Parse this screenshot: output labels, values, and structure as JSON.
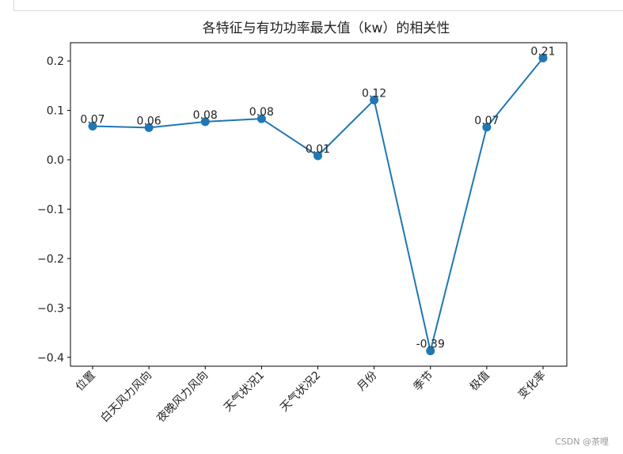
{
  "chart_data": {
    "type": "line",
    "title": "各特征与有功功率最大值（kw）的相关性",
    "categories": [
      "位置",
      "白天风力风向",
      "夜晚风力风向",
      "天气状况1",
      "天气状况2",
      "月份",
      "季节",
      "极值",
      "变化率"
    ],
    "values": [
      0.068,
      0.065,
      0.077,
      0.083,
      0.008,
      0.121,
      -0.387,
      0.066,
      0.206
    ],
    "data_labels": [
      "0.07",
      "0.06",
      "0.08",
      "0.08",
      "0.01",
      "0.12",
      "-0.39",
      "0.07",
      "0.21"
    ],
    "ylim": [
      -0.418,
      0.237
    ],
    "yticks": [
      0.2,
      0.1,
      0.0,
      -0.1,
      -0.2,
      -0.3,
      -0.4
    ],
    "ytick_labels": [
      "0.2",
      "0.1",
      "0.0",
      "−0.1",
      "−0.2",
      "−0.3",
      "−0.4"
    ],
    "xlabel": "",
    "ylabel": "",
    "grid": false,
    "series_color": "#1f77b4",
    "x_tick_rotation": 45
  },
  "watermark": "CSDN @茶哩"
}
